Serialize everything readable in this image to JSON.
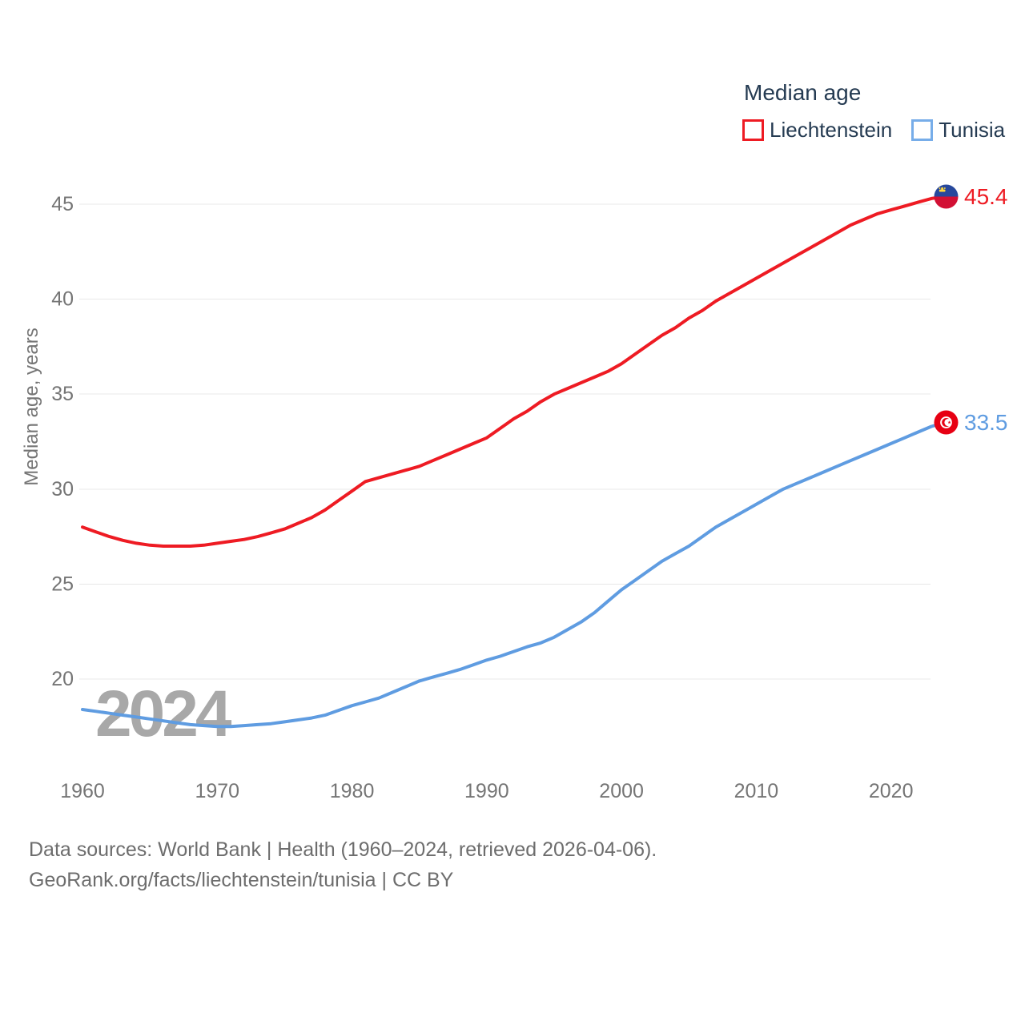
{
  "page": {
    "background": "#ffffff"
  },
  "legend": {
    "title": "Median age",
    "items": [
      {
        "label": "Liechtenstein",
        "color": "#ee1b23",
        "swatch_border": "#ee1b23"
      },
      {
        "label": "Tunisia",
        "color": "#5f9ce1",
        "swatch_border": "#77ade9"
      }
    ]
  },
  "chart_data": {
    "type": "line",
    "title": "Median age",
    "xlabel": "",
    "ylabel": "Median age, years",
    "xlim": [
      1960,
      2024
    ],
    "ylim": [
      17,
      46.5
    ],
    "grid": true,
    "legend_position": "top-right",
    "xticks": [
      1960,
      1970,
      1980,
      1990,
      2000,
      2010,
      2020
    ],
    "yticks": [
      20,
      25,
      30,
      35,
      40,
      45
    ],
    "x": [
      1960,
      1961,
      1962,
      1963,
      1964,
      1965,
      1966,
      1967,
      1968,
      1969,
      1970,
      1971,
      1972,
      1973,
      1974,
      1975,
      1976,
      1977,
      1978,
      1979,
      1980,
      1981,
      1982,
      1983,
      1984,
      1985,
      1986,
      1987,
      1988,
      1989,
      1990,
      1991,
      1992,
      1993,
      1994,
      1995,
      1996,
      1997,
      1998,
      1999,
      2000,
      2001,
      2002,
      2003,
      2004,
      2005,
      2006,
      2007,
      2008,
      2009,
      2010,
      2011,
      2012,
      2013,
      2014,
      2015,
      2016,
      2017,
      2018,
      2019,
      2020,
      2021,
      2022,
      2023,
      2024
    ],
    "series": [
      {
        "name": "Liechtenstein",
        "color": "#ee1b23",
        "end_label": "45.4",
        "values": [
          28.0,
          27.75,
          27.5,
          27.3,
          27.15,
          27.05,
          27.0,
          27.0,
          27.0,
          27.05,
          27.15,
          27.25,
          27.35,
          27.5,
          27.7,
          27.9,
          28.2,
          28.5,
          28.9,
          29.4,
          29.9,
          30.4,
          30.6,
          30.8,
          31.0,
          31.2,
          31.5,
          31.8,
          32.1,
          32.4,
          32.7,
          33.2,
          33.7,
          34.1,
          34.6,
          35.0,
          35.3,
          35.6,
          35.9,
          36.2,
          36.6,
          37.1,
          37.6,
          38.1,
          38.5,
          39.0,
          39.4,
          39.9,
          40.3,
          40.7,
          41.1,
          41.5,
          41.9,
          42.3,
          42.7,
          43.1,
          43.5,
          43.9,
          44.2,
          44.5,
          44.7,
          44.9,
          45.1,
          45.3,
          45.4
        ]
      },
      {
        "name": "Tunisia",
        "color": "#5f9ce1",
        "end_label": "33.5",
        "values": [
          18.4,
          18.3,
          18.2,
          18.1,
          18.0,
          17.9,
          17.8,
          17.7,
          17.6,
          17.55,
          17.5,
          17.5,
          17.55,
          17.6,
          17.65,
          17.75,
          17.85,
          17.95,
          18.1,
          18.35,
          18.6,
          18.8,
          19.0,
          19.3,
          19.6,
          19.9,
          20.1,
          20.3,
          20.5,
          20.75,
          21.0,
          21.2,
          21.45,
          21.7,
          21.9,
          22.2,
          22.6,
          23.0,
          23.5,
          24.1,
          24.7,
          25.2,
          25.7,
          26.2,
          26.6,
          27.0,
          27.5,
          28.0,
          28.4,
          28.8,
          29.2,
          29.6,
          30.0,
          30.3,
          30.6,
          30.9,
          31.2,
          31.5,
          31.8,
          32.1,
          32.4,
          32.7,
          33.0,
          33.3,
          33.5
        ]
      }
    ]
  },
  "watermark": "2024",
  "footer": {
    "line1": "Data sources: World Bank | Health (1960–2024, retrieved 2026-04-06).",
    "line2": "GeoRank.org/facts/liechtenstein/tunisia | CC BY"
  },
  "style_colors": {
    "grid": "#e8e8e8",
    "tick_text": "#757575",
    "legend_text": "#253b52",
    "footer_text": "#6d6d6d",
    "watermark": "#a8a8a8"
  }
}
